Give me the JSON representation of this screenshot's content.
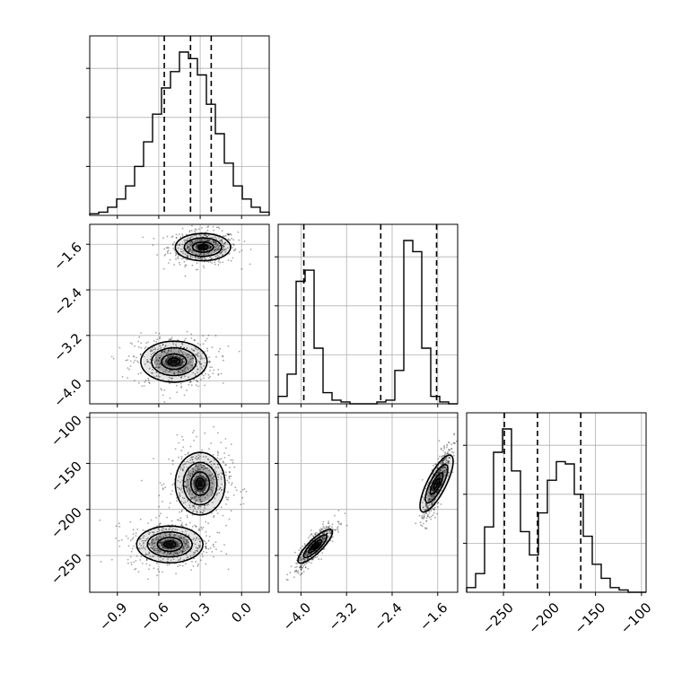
{
  "chart_data": {
    "type": "corner",
    "parameters": [
      {
        "id": "p0",
        "range": [
          -1.1,
          0.2
        ],
        "ticks": [
          -0.9,
          -0.6,
          -0.3,
          0.0
        ],
        "tick_labels": [
          "−0.9",
          "−0.6",
          "−0.3",
          "0.0"
        ]
      },
      {
        "id": "p1",
        "range": [
          -4.4,
          -1.25
        ],
        "ticks": [
          -4.0,
          -3.2,
          -2.4,
          -1.6
        ],
        "tick_labels": [
          "−4.0",
          "−3.2",
          "−2.4",
          "−1.6"
        ]
      },
      {
        "id": "p2",
        "range": [
          -290,
          -95
        ],
        "ticks": [
          -250,
          -200,
          -150,
          -100
        ],
        "tick_labels": [
          "−250",
          "−200",
          "−150",
          "−100"
        ]
      }
    ],
    "grid": true,
    "histograms": [
      {
        "param": "p0",
        "edges_start": -1.1,
        "bin_width": 0.065,
        "counts": [
          1,
          2,
          5,
          10,
          18,
          30,
          45,
          62,
          78,
          88,
          100,
          96,
          86,
          68,
          50,
          32,
          18,
          10,
          5,
          2
        ],
        "quantiles": [
          -0.56,
          -0.37,
          -0.22
        ]
      },
      {
        "param": "p1",
        "edges_start": -4.4,
        "bin_width": 0.1575,
        "counts": [
          4,
          16,
          66,
          72,
          30,
          6,
          2,
          1,
          0,
          0,
          0,
          1,
          2,
          18,
          88,
          82,
          30,
          4,
          1,
          0
        ],
        "quantiles": [
          -3.95,
          -2.6,
          -1.62
        ]
      },
      {
        "param": "p2",
        "edges_start": -290,
        "bin_width": 9.75,
        "counts": [
          2,
          8,
          28,
          60,
          70,
          52,
          26,
          16,
          34,
          48,
          56,
          55,
          42,
          24,
          12,
          6,
          2,
          1,
          0,
          0
        ],
        "quantiles": [
          -249,
          -213,
          -166
        ]
      }
    ],
    "pairs": [
      {
        "x": "p0",
        "y": "p1",
        "clusters": [
          {
            "mean": [
              -0.28,
              -1.65
            ],
            "sd": [
              0.1,
              0.12
            ],
            "weight": 0.5
          },
          {
            "mean": [
              -0.49,
              -3.66
            ],
            "sd": [
              0.12,
              0.18
            ],
            "weight": 0.5
          }
        ]
      },
      {
        "x": "p0",
        "y": "p2",
        "clusters": [
          {
            "mean": [
              -0.3,
              -172
            ],
            "sd": [
              0.09,
              17
            ],
            "weight": 0.5
          },
          {
            "mean": [
              -0.52,
              -238
            ],
            "sd": [
              0.12,
              10
            ],
            "weight": 0.5
          }
        ]
      },
      {
        "x": "p1",
        "y": "p2",
        "clusters": [
          {
            "mean": [
              -1.62,
              -172
            ],
            "sd": [
              0.1,
              17
            ],
            "weight": 0.5,
            "corr": 0.85
          },
          {
            "mean": [
              -3.75,
              -240
            ],
            "sd": [
              0.14,
              10
            ],
            "weight": 0.5,
            "corr": 0.85
          }
        ]
      }
    ]
  }
}
